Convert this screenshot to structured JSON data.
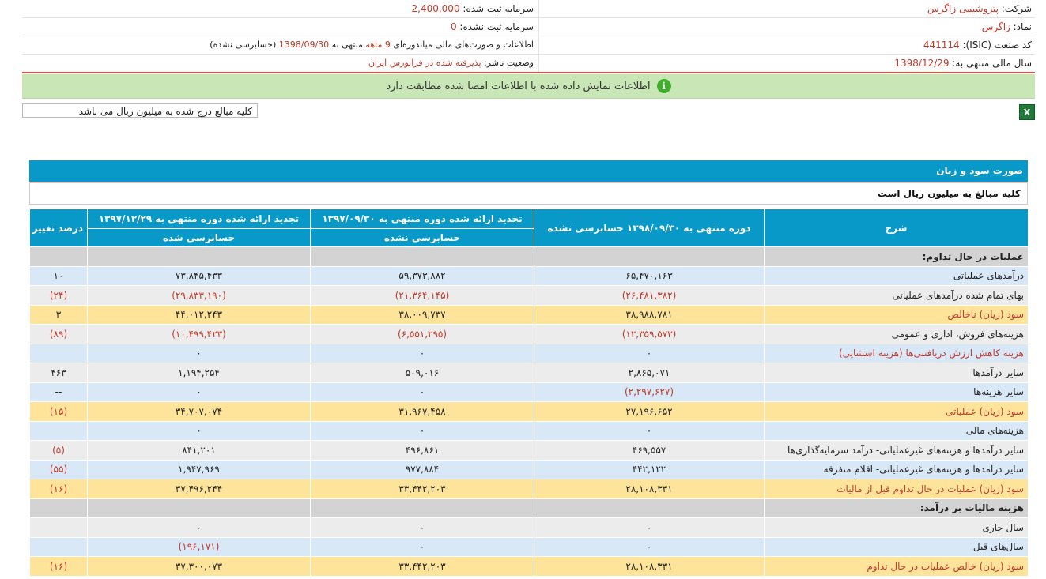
{
  "header": {
    "company_label": "شرکت:",
    "company_value": "پتروشیمی زاگرس",
    "capital_label": "سرمایه ثبت شده:",
    "capital_value": "2,400,000",
    "symbol_label": "نماد:",
    "symbol_value": "زاگرس",
    "unregistered_label": "سرمایه ثبت نشده:",
    "unregistered_value": "0",
    "isic_label": "کد صنعت (ISIC):",
    "isic_value": "441114",
    "report_prefix": "اطلاعات و صورت‌های مالی میاندوره‌ای",
    "report_period": "9 ماهه",
    "report_mid": "منتهی به",
    "report_date": "1398/09/30",
    "report_suffix": "(حسابرسی نشده)",
    "fiscal_label": "سال مالی منتهی به:",
    "fiscal_value": "1398/12/29",
    "publisher_label": "وضعیت ناشر:",
    "publisher_value": "پذیرفته شده در فرابورس ایران"
  },
  "notice": {
    "text": "اطلاعات نمایش داده شده با اطلاعات امضا شده مطابقت دارد",
    "icon": "info-icon"
  },
  "toolbar": {
    "amount_note": "کلیه مبالغ درج شده به میلیون ریال می باشد",
    "excel_icon": "excel-icon",
    "excel_glyph": "X"
  },
  "statement": {
    "title": "صورت سود و زیان",
    "subtitle": "کلیه مبالغ به میلیون ریال است",
    "columns": {
      "desc": "شرح",
      "c1": "دوره منتهی به ۱۳۹۸/۰۹/۳۰ حسابرسی نشده",
      "c2": "تجدید ارائه شده دوره منتهی به ۱۳۹۷/۰۹/۳۰",
      "c2_sub": "حسابرسی نشده",
      "c3": "تجدید ارائه شده دوره منتهی به ۱۳۹۷/۱۲/۲۹",
      "c3_sub": "حسابرسی شده",
      "c4": "درصد تغییر"
    },
    "rows": [
      {
        "type": "sec",
        "desc": "عملیات در حال تداوم:",
        "c1": "",
        "c2": "",
        "c3": "",
        "c4": ""
      },
      {
        "type": "blue",
        "desc": "درآمدهای عملیاتی",
        "c1": "۶۵,۴۷۰,۱۶۳",
        "c2": "۵۹,۳۷۳,۸۸۲",
        "c3": "۷۳,۸۴۵,۴۳۳",
        "c4": "۱۰"
      },
      {
        "type": "grey",
        "desc": "بهای تمام شده درآمدهای عملیاتی",
        "c1": "(۲۶,۴۸۱,۳۸۲)",
        "c2": "(۲۱,۳۶۴,۱۴۵)",
        "c3": "(۲۹,۸۳۳,۱۹۰)",
        "c4": "(۲۴)"
      },
      {
        "type": "gold",
        "desc": "سود (زیان) ناخالص",
        "c1": "۳۸,۹۸۸,۷۸۱",
        "c2": "۳۸,۰۰۹,۷۳۷",
        "c3": "۴۴,۰۱۲,۲۴۳",
        "c4": "۳"
      },
      {
        "type": "grey",
        "desc": "هزینه‌های فروش، اداری و عمومی",
        "c1": "(۱۲,۳۵۹,۵۷۳)",
        "c2": "(۶,۵۵۱,۲۹۵)",
        "c3": "(۱۰,۴۹۹,۴۲۳)",
        "c4": "(۸۹)"
      },
      {
        "type": "blue",
        "desc": "هزینه کاهش ارزش دریافتنی‌ها (هزینه استثنایی)",
        "c1": "۰",
        "c2": "۰",
        "c3": "۰",
        "c4": ""
      },
      {
        "type": "grey",
        "desc": "سایر درآمدها",
        "c1": "۲,۸۶۵,۰۷۱",
        "c2": "۵۰۹,۰۱۶",
        "c3": "۱,۱۹۴,۲۵۴",
        "c4": "۴۶۳"
      },
      {
        "type": "blue",
        "desc": "سایر هزینه‌ها",
        "c1": "(۲,۲۹۷,۶۲۷)",
        "c2": "۰",
        "c3": "۰",
        "c4": "--"
      },
      {
        "type": "gold",
        "desc": "سود (زیان) عملیاتی",
        "c1": "۲۷,۱۹۶,۶۵۲",
        "c2": "۳۱,۹۶۷,۴۵۸",
        "c3": "۳۴,۷۰۷,۰۷۴",
        "c4": "(۱۵)"
      },
      {
        "type": "blue",
        "desc": "هزینه‌های مالی",
        "c1": "۰",
        "c2": "۰",
        "c3": "۰",
        "c4": ""
      },
      {
        "type": "grey",
        "desc": "سایر درآمدها و هزینه‌های غیرعملیاتی- درآمد سرمایه‌گذاری‌ها",
        "c1": "۴۶۹,۵۵۷",
        "c2": "۴۹۶,۸۶۱",
        "c3": "۸۴۱,۲۰۱",
        "c4": "(۵)"
      },
      {
        "type": "blue",
        "desc": "سایر درآمدها و هزینه‌های غیرعملیاتی- اقلام متفرقه",
        "c1": "۴۴۲,۱۲۲",
        "c2": "۹۷۷,۸۸۴",
        "c3": "۱,۹۴۷,۹۶۹",
        "c4": "(۵۵)"
      },
      {
        "type": "gold",
        "desc": "سود (زیان) عملیات در حال تداوم قبل از مالیات",
        "c1": "۲۸,۱۰۸,۳۳۱",
        "c2": "۳۳,۴۴۲,۲۰۳",
        "c3": "۳۷,۴۹۶,۲۴۴",
        "c4": "(۱۶)"
      },
      {
        "type": "sec",
        "desc": "هزینه مالیات بر درآمد:",
        "c1": "",
        "c2": "",
        "c3": "",
        "c4": ""
      },
      {
        "type": "grey",
        "desc": "سال جاری",
        "c1": "۰",
        "c2": "۰",
        "c3": "۰",
        "c4": ""
      },
      {
        "type": "blue",
        "desc": "سال‌های قبل",
        "c1": "۰",
        "c2": "۰",
        "c3": "(۱۹۶,۱۷۱)",
        "c4": ""
      },
      {
        "type": "gold",
        "desc": "سود (زیان) خالص عملیات در حال تداوم",
        "c1": "۲۸,۱۰۸,۳۳۱",
        "c2": "۳۳,۴۴۲,۲۰۳",
        "c3": "۳۷,۳۰۰,۰۷۳",
        "c4": "(۱۶)"
      }
    ]
  }
}
